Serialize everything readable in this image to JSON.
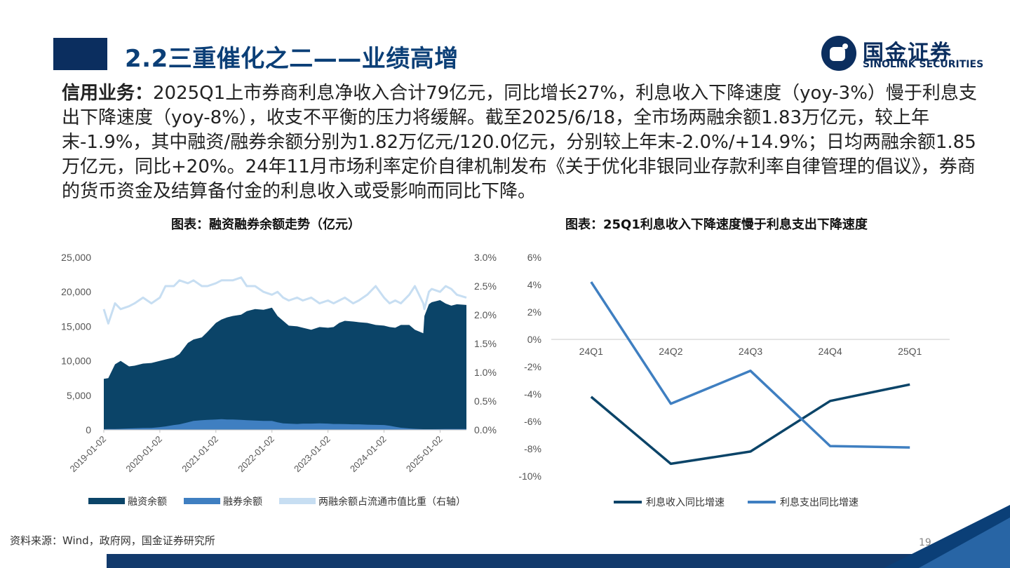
{
  "page_title": "2.2三重催化之二——业绩高增",
  "logo": {
    "cn": "国金证券",
    "en": "SINOLINK SECURITIES"
  },
  "body": {
    "lead": "信用业务：",
    "text": "2025Q1上市券商利息净收入合计79亿元，同比增长27%，利息收入下降速度（yoy-3%）慢于利息支出下降速度（yoy-8%），收支不平衡的压力将缓解。截至2025/6/18，全市场两融余额1.83万亿元，较上年末-1.9%，其中融资/融券余额分别为1.82万亿元/120.0亿元，分别较上年末-2.0%/+14.9%；日均两融余额1.85万亿元，同比+20%。24年11月市场利率定价自律机制发布《关于优化非银同业存款利率自律管理的倡议》，券商的货币资金及结算备付金的利息收入或受影响而同比下降。"
  },
  "footer": {
    "source": "资料来源：Wind，政府网，国金证券研究所",
    "page": "19"
  },
  "colors": {
    "dark_navy": "#0b4468",
    "mid_blue": "#3f7fc1",
    "light_blue": "#c7def2",
    "title_blue": "#0b3f77"
  },
  "chart_data": [
    {
      "type": "area",
      "title": "图表：融资融券余额走势（亿元）",
      "x_ticks": [
        "2019-01-02",
        "2020-01-02",
        "2021-01-02",
        "2022-01-02",
        "2023-01-02",
        "2024-01-02",
        "2025-01-02"
      ],
      "y_left_ticks": [
        "0",
        "5,000",
        "10,000",
        "15,000",
        "20,000",
        "25,000"
      ],
      "y_right_ticks": [
        "0.0%",
        "0.5%",
        "1.0%",
        "1.5%",
        "2.0%",
        "2.5%",
        "3.0%"
      ],
      "ylim_left": [
        0,
        25000
      ],
      "ylim_right": [
        0,
        3.0
      ],
      "legend": [
        "融资余额",
        "融券余额",
        "两融余额占流通市值比重（右轴）"
      ],
      "x": [
        2019.0,
        2019.08,
        2019.2,
        2019.3,
        2019.45,
        2019.55,
        2019.7,
        2019.85,
        2020.0,
        2020.1,
        2020.25,
        2020.35,
        2020.5,
        2020.6,
        2020.75,
        2020.85,
        2021.0,
        2021.1,
        2021.2,
        2021.3,
        2021.45,
        2021.55,
        2021.7,
        2021.85,
        2022.0,
        2022.1,
        2022.2,
        2022.3,
        2022.45,
        2022.55,
        2022.7,
        2022.85,
        2023.0,
        2023.1,
        2023.2,
        2023.3,
        2023.45,
        2023.55,
        2023.7,
        2023.85,
        2024.0,
        2024.1,
        2024.2,
        2024.3,
        2024.45,
        2024.55,
        2024.7,
        2024.72,
        2024.8,
        2024.85,
        2025.0,
        2025.1,
        2025.2,
        2025.3,
        2025.47
      ],
      "series": [
        {
          "name": "融资余额",
          "values": [
            7400,
            7500,
            9500,
            10000,
            9200,
            9300,
            9600,
            9700,
            10000,
            10200,
            10500,
            11000,
            12600,
            13100,
            13400,
            14200,
            15500,
            16000,
            16300,
            16500,
            16700,
            17200,
            17500,
            17400,
            17700,
            16500,
            15800,
            15100,
            15000,
            14800,
            14500,
            14900,
            14800,
            14900,
            15500,
            15800,
            15700,
            15600,
            15500,
            15200,
            15100,
            14900,
            14800,
            15200,
            15200,
            14500,
            14000,
            16500,
            18200,
            18500,
            18800,
            18300,
            18000,
            18200,
            18100
          ]
        },
        {
          "name": "融券余额",
          "values": [
            100,
            120,
            130,
            150,
            200,
            220,
            260,
            280,
            400,
            500,
            700,
            800,
            1100,
            1300,
            1400,
            1450,
            1500,
            1550,
            1500,
            1500,
            1450,
            1400,
            1350,
            1300,
            1300,
            1100,
            950,
            900,
            850,
            900,
            900,
            950,
            900,
            850,
            850,
            830,
            800,
            800,
            750,
            720,
            700,
            600,
            450,
            300,
            200,
            150,
            100,
            100,
            100,
            100,
            110,
            120,
            120,
            120,
            120
          ]
        },
        {
          "name": "两融余额占流通市值比重（右轴）",
          "values": [
            2.1,
            1.85,
            2.2,
            2.1,
            2.15,
            2.2,
            2.3,
            2.2,
            2.3,
            2.5,
            2.5,
            2.6,
            2.55,
            2.6,
            2.5,
            2.5,
            2.55,
            2.6,
            2.6,
            2.6,
            2.65,
            2.5,
            2.5,
            2.4,
            2.35,
            2.4,
            2.3,
            2.25,
            2.3,
            2.25,
            2.3,
            2.2,
            2.25,
            2.2,
            2.25,
            2.3,
            2.2,
            2.25,
            2.35,
            2.5,
            2.3,
            2.2,
            2.25,
            2.2,
            2.35,
            2.5,
            2.2,
            2.1,
            2.4,
            2.45,
            2.4,
            2.5,
            2.45,
            2.35,
            2.3
          ]
        }
      ]
    },
    {
      "type": "line",
      "title": "图表：25Q1利息收入下降速度慢于利息支出下降速度",
      "categories": [
        "24Q1",
        "24Q2",
        "24Q3",
        "24Q4",
        "25Q1"
      ],
      "y_ticks": [
        "6%",
        "4%",
        "2%",
        "0%",
        "-2%",
        "-4%",
        "-6%",
        "-8%",
        "-10%"
      ],
      "ylim": [
        -10,
        6
      ],
      "series": [
        {
          "name": "利息收入同比增速",
          "values": [
            -4.2,
            -9.1,
            -8.2,
            -4.5,
            -3.3
          ]
        },
        {
          "name": "利息支出同比增速",
          "values": [
            4.2,
            -4.7,
            -2.3,
            -7.8,
            -7.9
          ]
        }
      ]
    }
  ]
}
